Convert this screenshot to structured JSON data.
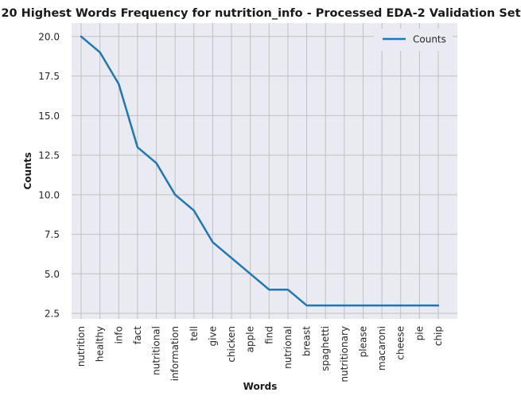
{
  "chart_data": {
    "type": "line",
    "title": "20 Highest Words Frequency for nutrition_info - Processed EDA-2 Validation Set",
    "xlabel": "Words",
    "ylabel": "Counts",
    "categories": [
      "nutrition",
      "healthy",
      "info",
      "fact",
      "nutritional",
      "information",
      "tell",
      "give",
      "chicken",
      "apple",
      "find",
      "nutrional",
      "breast",
      "spaghetti",
      "nutritionary",
      "please",
      "macaroni",
      "cheese",
      "pie",
      "chip"
    ],
    "series": [
      {
        "name": "Counts",
        "color": "#1f77b4",
        "values": [
          20,
          19,
          17,
          13,
          12,
          10,
          9,
          7,
          6,
          5,
          4,
          4,
          3,
          3,
          3,
          3,
          3,
          3,
          3,
          3
        ]
      }
    ],
    "ylim": [
      2.15,
      20.85
    ],
    "yticks": [
      2.5,
      5.0,
      7.5,
      10.0,
      12.5,
      15.0,
      17.5,
      20.0
    ],
    "ytick_labels": [
      "2.5",
      "5.0",
      "7.5",
      "10.0",
      "12.5",
      "15.0",
      "17.5",
      "20.0"
    ],
    "grid": true,
    "legend_position": "top-right",
    "style": {
      "background": "#eaeaf2",
      "grid_color": "#c0c0c0"
    }
  }
}
